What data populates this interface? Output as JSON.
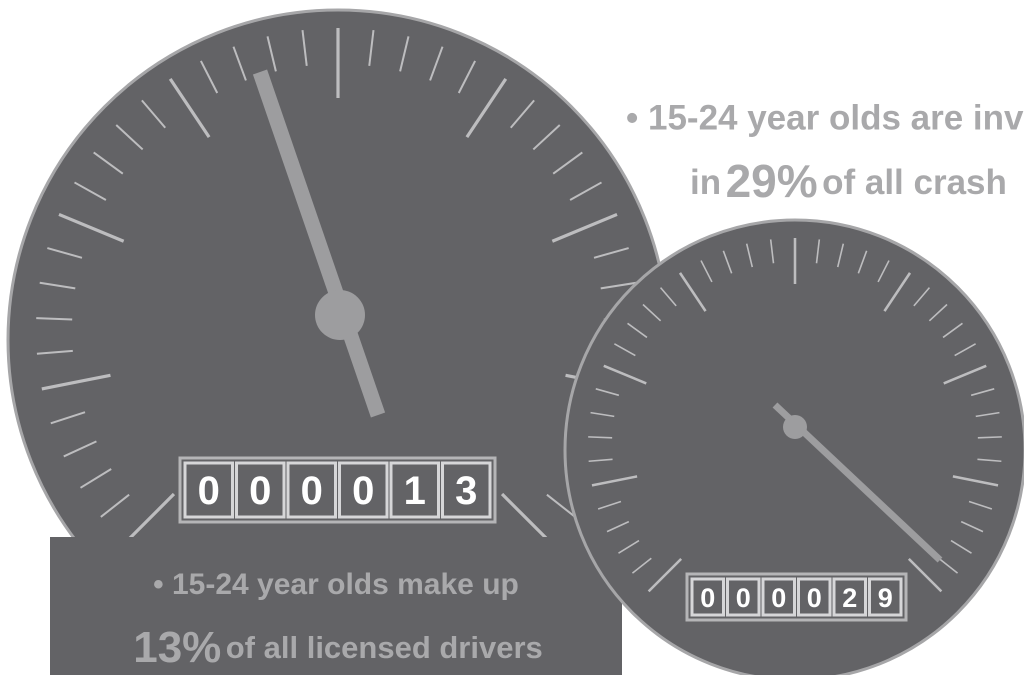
{
  "gauge_1": {
    "odometer": [
      "0",
      "0",
      "0",
      "0",
      "1",
      "3"
    ],
    "caption": {
      "line_1": "• 15-24 year olds make up",
      "highlight": "13%",
      "line_2": "of all licensed drivers"
    }
  },
  "gauge_2": {
    "odometer": [
      "0",
      "0",
      "0",
      "0",
      "2",
      "9"
    ],
    "caption": {
      "line_1": "• 15-24 year olds are inv",
      "line_2_start": "in",
      "highlight": "29%",
      "line_2": "of all crash"
    }
  }
}
